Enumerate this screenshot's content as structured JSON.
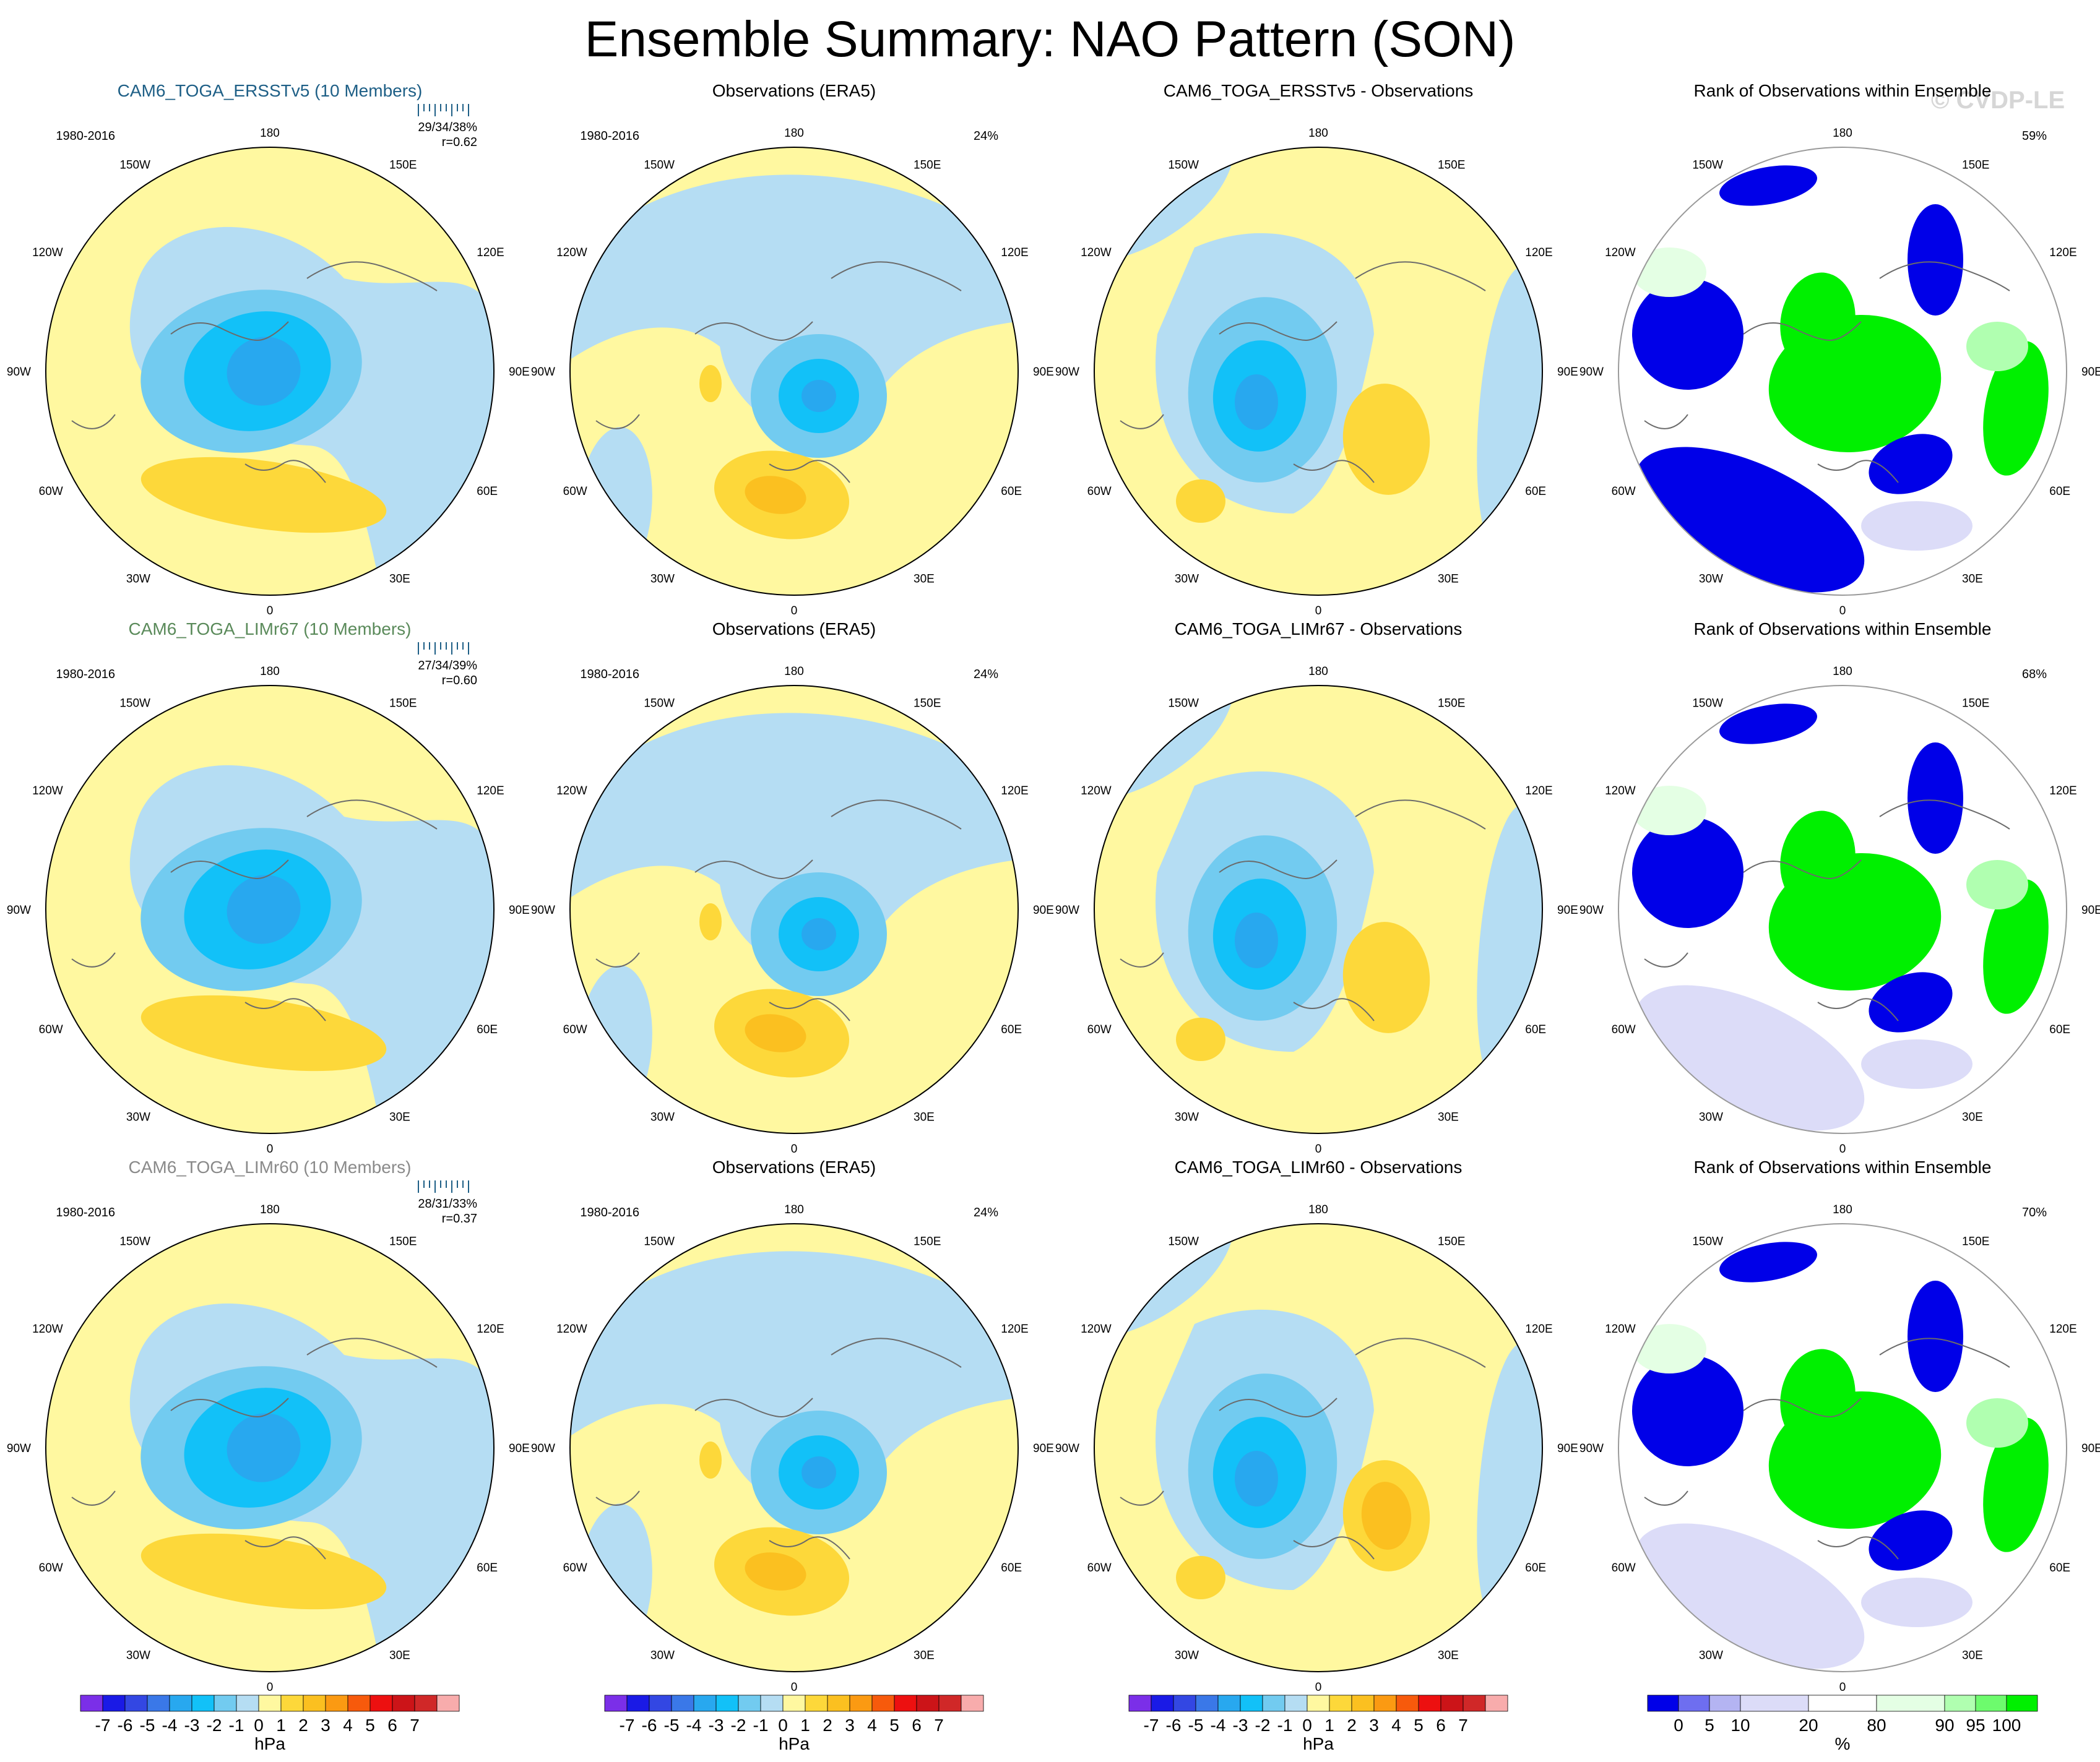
{
  "title": "Ensemble Summary: NAO Pattern (SON)",
  "watermark": "© CVDP-LE",
  "period": "1980-2016",
  "lon_labels": [
    "180",
    "150E",
    "120E",
    "90E",
    "60E",
    "30E",
    "0",
    "30W",
    "60W",
    "90W",
    "120W",
    "150W"
  ],
  "colors": {
    "hpa": [
      "#7b2fe8",
      "#1a1ae6",
      "#3347e3",
      "#3a78e8",
      "#28a8ef",
      "#12c1f8",
      "#72cbf0",
      "#b5ddf3",
      "#fff8a0",
      "#fdd83a",
      "#fbc020",
      "#fb9a12",
      "#f75a0c",
      "#ed1010",
      "#cc1418",
      "#d02828",
      "#f8acac"
    ],
    "rank": [
      "#0000e8",
      "#6e6ef0",
      "#b4b4f2",
      "#dcdcf8",
      "#ffffff",
      "#e4ffe4",
      "#b0ffb0",
      "#6dfb6d",
      "#00f000"
    ]
  },
  "color_bars": {
    "hpa": {
      "labels": [
        "-7",
        "-6",
        "-5",
        "-4",
        "-3",
        "-2",
        "-1",
        "0",
        "1",
        "2",
        "3",
        "4",
        "5",
        "6",
        "7"
      ],
      "unit": "hPa"
    },
    "rank": {
      "labels": [
        "0",
        "5",
        "10",
        "20",
        "80",
        "90",
        "95",
        "100"
      ],
      "unit": "%"
    }
  },
  "rows": [
    {
      "model": "CAM6_TOGA_ERSSTv5 (10 Members)",
      "model_color": "#1e5f86",
      "stats": "29/34/38%",
      "corr": "r=0.62",
      "obs_title": "Observations (ERA5)",
      "obs_pct": "24%",
      "diff_title": "CAM6_TOGA_ERSSTv5 - Observations",
      "rank_title": "Rank of Observations within Ensemble",
      "rank_pct": "59%"
    },
    {
      "model": "CAM6_TOGA_LIMr67 (10 Members)",
      "model_color": "#5a8a5a",
      "stats": "27/34/39%",
      "corr": "r=0.60",
      "obs_title": "Observations (ERA5)",
      "obs_pct": "24%",
      "diff_title": "CAM6_TOGA_LIMr67 - Observations",
      "rank_title": "Rank of Observations within Ensemble",
      "rank_pct": "68%"
    },
    {
      "model": "CAM6_TOGA_LIMr60 (10 Members)",
      "model_color": "#8a8a8a",
      "stats": "28/31/33%",
      "corr": "r=0.37",
      "obs_title": "Observations (ERA5)",
      "obs_pct": "24%",
      "diff_title": "CAM6_TOGA_LIMr60 - Observations",
      "rank_title": "Rank of Observations within Ensemble",
      "rank_pct": "70%"
    }
  ],
  "chart_data": [
    {
      "type": "heatmap",
      "title": "Ensemble Summary: NAO Pattern (SON)",
      "description_of_panels": "3 rows x 4 columns of north-polar stereographic maps",
      "columns": [
        "Ensemble mean NAO pattern (hPa)",
        "Observations (ERA5) (hPa)",
        "Ensemble - Observations (hPa)",
        "Rank of Observations within Ensemble (%)"
      ],
      "hpa_colorbar_levels": [
        -7,
        -6,
        -5,
        -4,
        -3,
        -2,
        -1,
        0,
        1,
        2,
        3,
        4,
        5,
        6,
        7
      ],
      "rank_colorbar_levels": [
        0,
        5,
        10,
        20,
        80,
        90,
        95,
        100
      ],
      "period": "1980-2016",
      "pattern_correlations": [
        0.62,
        0.6,
        0.37
      ],
      "rank_percent": [
        59,
        68,
        70
      ],
      "obs_percent": [
        24,
        24,
        24
      ]
    }
  ]
}
